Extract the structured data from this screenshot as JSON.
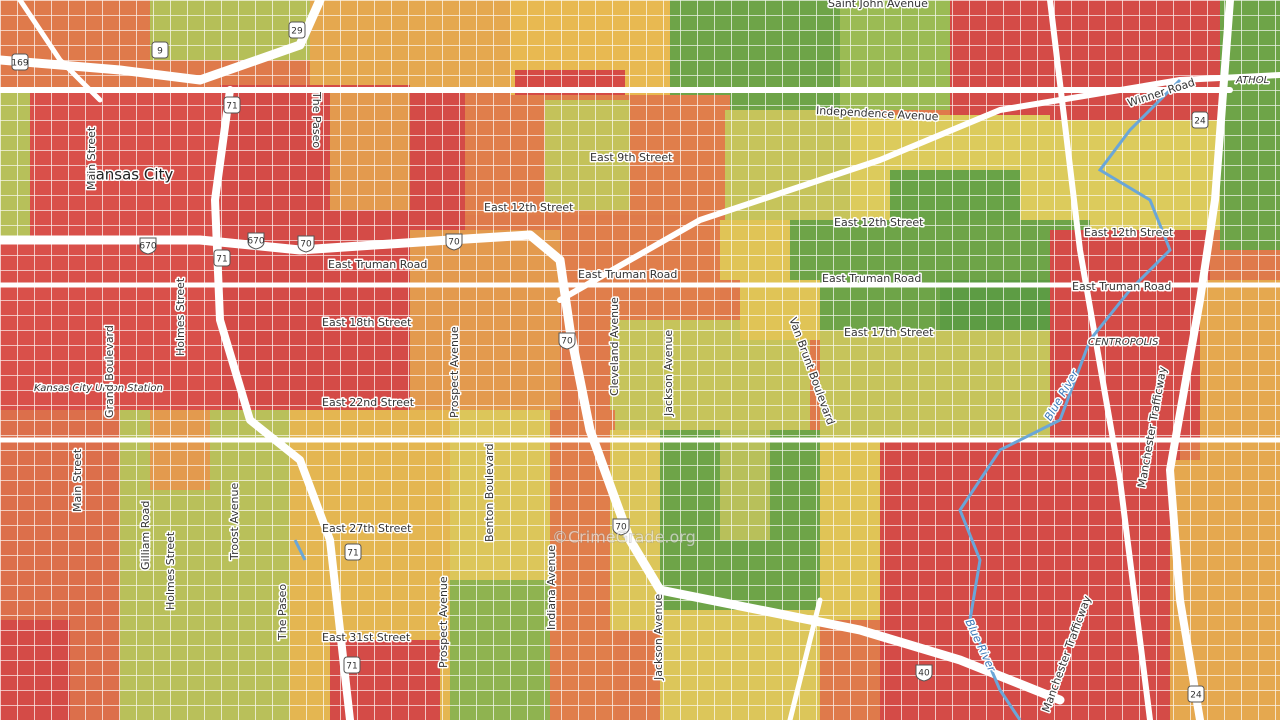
{
  "map": {
    "place_labels": [
      "Kansas City",
      "Kansas City Union Station",
      "CENTROPOLIS",
      "ATHOL"
    ],
    "street_labels": [
      "Saint John Avenue",
      "Independence Avenue",
      "Winner Road",
      "East 9th Street",
      "East 12th Street",
      "East 12th Street",
      "East 12th Street",
      "East Truman Road",
      "East Truman Road",
      "East Truman Road",
      "East Truman Road",
      "East 17th Street",
      "East 18th Street",
      "East 22nd Street",
      "East 27th Street",
      "East 31st Street",
      "Main Street",
      "Main Street",
      "Grand Boulevard",
      "Holmes Street",
      "Holmes Street",
      "The Paseo",
      "The Paseo",
      "Prospect Avenue",
      "Prospect Avenue",
      "Cleveland Avenue",
      "Jackson Avenue",
      "Jackson Avenue",
      "Van Brunt Boulevard",
      "Benton Boulevard",
      "Indiana Avenue",
      "Troost Avenue",
      "Gilliam Road",
      "Manchester Trafficway",
      "Manchester Trafficway",
      "Blue River",
      "Blue River"
    ],
    "shields": [
      "169",
      "9",
      "29",
      "71",
      "670",
      "670",
      "70",
      "70",
      "71",
      "70",
      "70",
      "71",
      "71",
      "24",
      "40",
      "24"
    ],
    "watermark": "©CrimeGrade.org"
  }
}
